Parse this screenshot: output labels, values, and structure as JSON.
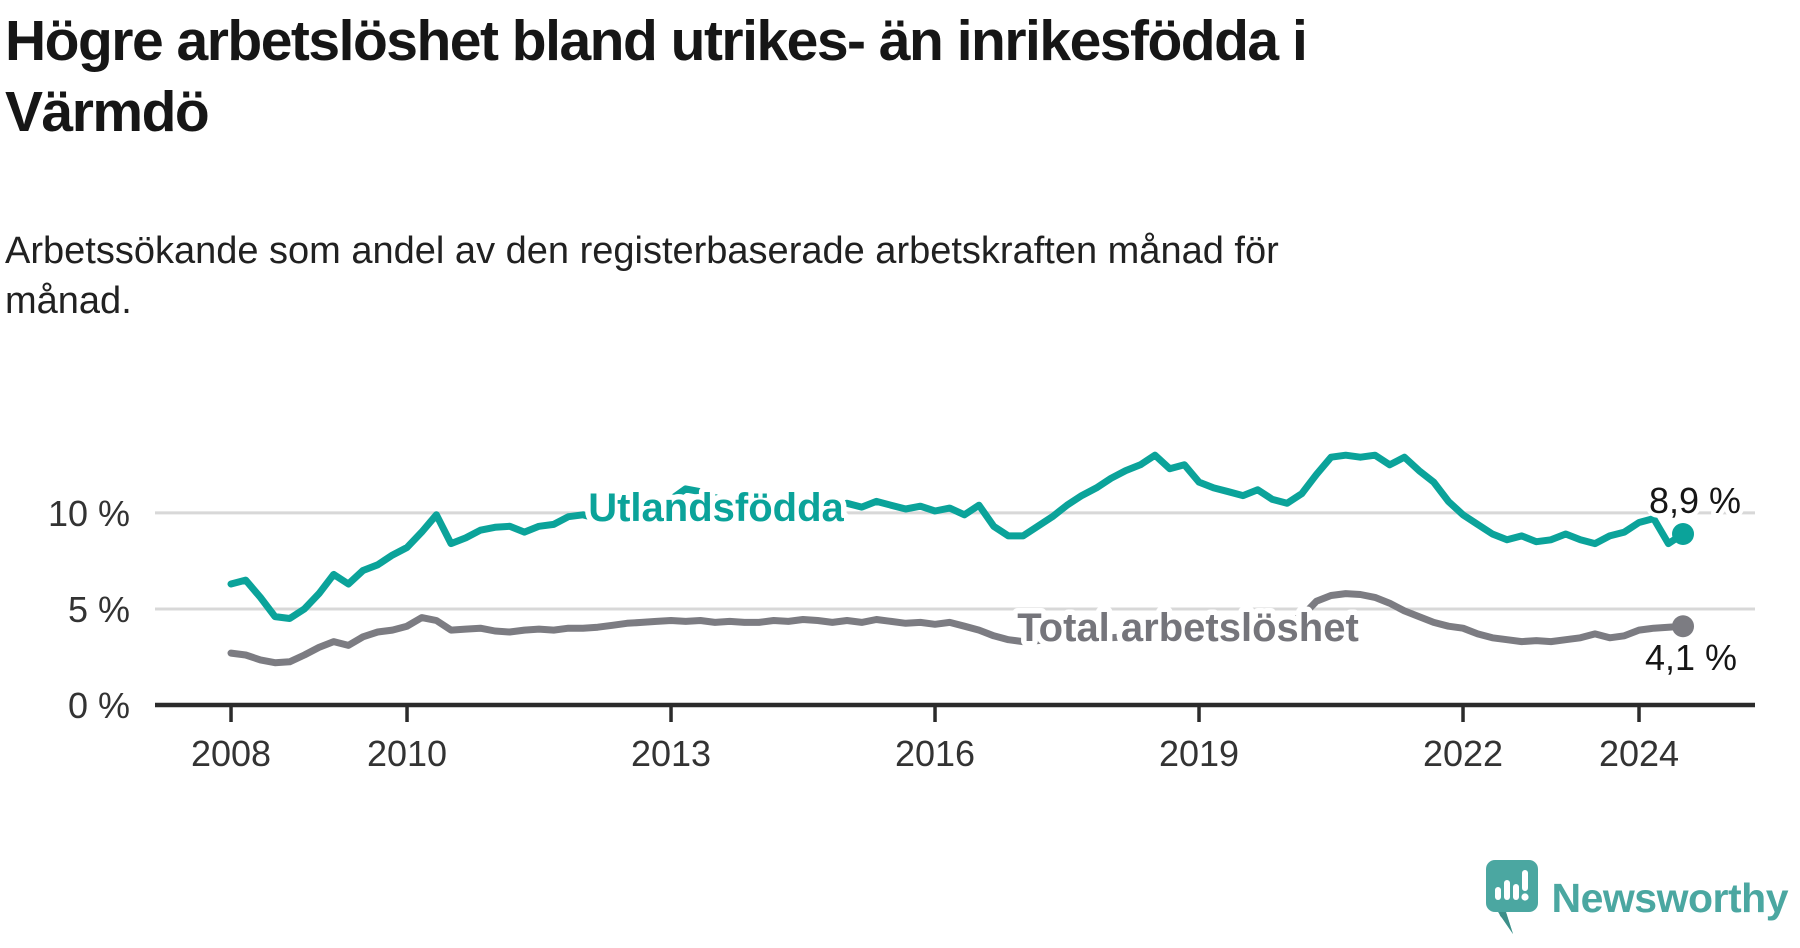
{
  "header": {
    "title_lines": [
      "Högre arbetslöshet bland utrikes- än inrikesfödda i",
      "Värmdö"
    ],
    "subtitle_lines": [
      "Arbetssökande som andel av den registerbaserade arbetskraften månad för",
      "månad."
    ]
  },
  "branding": {
    "name": "Newsworthy",
    "logo_icon": "newsworthy-speech-bubble-bar-chart-icon",
    "color": "#4ba7a1"
  },
  "chart_data": {
    "type": "line",
    "title": "Högre arbetslöshet bland utrikes- än inrikesfödda i Värmdö",
    "subtitle": "Arbetssökande som andel av den registerbaserade arbetskraften månad för månad.",
    "grid": "horizontal",
    "legend_position": "inline-labels",
    "xlim": [
      2007.136,
      2025.318
    ],
    "ylim": [
      0,
      16.5
    ],
    "x_ticks": [
      {
        "v": 2008,
        "label": "2008"
      },
      {
        "v": 2010,
        "label": "2010"
      },
      {
        "v": 2013,
        "label": "2013"
      },
      {
        "v": 2016,
        "label": "2016"
      },
      {
        "v": 2019,
        "label": "2019"
      },
      {
        "v": 2022,
        "label": "2022"
      },
      {
        "v": 2024,
        "label": "2024"
      }
    ],
    "y_ticks": [
      {
        "v": 0,
        "label": "0 %"
      },
      {
        "v": 5,
        "label": "5 %"
      },
      {
        "v": 10,
        "label": "10 %"
      }
    ],
    "colors": {
      "grid": "#d8d8d8",
      "axis": "#2b2b2b",
      "tick_text": "#333333"
    },
    "series": [
      {
        "key": "total",
        "name": "Total arbetslöshet",
        "color": "#7c7c82",
        "label_color": "#75757b",
        "start_year": 2008,
        "start_month": 1,
        "step_months": 2,
        "end_label": "4,1 %",
        "end_value": 4.1,
        "values": [
          2.7,
          2.6,
          2.35,
          2.2,
          2.25,
          2.6,
          3.0,
          3.3,
          3.1,
          3.55,
          3.8,
          3.9,
          4.1,
          4.55,
          4.4,
          3.9,
          3.95,
          4.0,
          3.85,
          3.8,
          3.9,
          3.95,
          3.9,
          4.0,
          4.0,
          4.05,
          4.15,
          4.25,
          4.3,
          4.35,
          4.4,
          4.35,
          4.4,
          4.3,
          4.35,
          4.3,
          4.3,
          4.4,
          4.35,
          4.45,
          4.4,
          4.3,
          4.4,
          4.3,
          4.45,
          4.35,
          4.25,
          4.3,
          4.2,
          4.3,
          4.1,
          3.9,
          3.6,
          3.4,
          3.3,
          3.35,
          3.45,
          3.5,
          3.55,
          3.6,
          3.5,
          3.55,
          3.6,
          3.65,
          3.7,
          3.75,
          3.7,
          3.8,
          3.85,
          3.9,
          4.0,
          4.1,
          4.3,
          4.6,
          5.4,
          5.7,
          5.8,
          5.75,
          5.6,
          5.3,
          4.9,
          4.6,
          4.3,
          4.1,
          4.0,
          3.7,
          3.5,
          3.4,
          3.3,
          3.35,
          3.3,
          3.4,
          3.5,
          3.7,
          3.5,
          3.6,
          3.9,
          4.0,
          4.05,
          4.1
        ]
      },
      {
        "key": "utlandsfodda",
        "name": "Utlandsfödda",
        "color": "#0ba39a",
        "label_color": "#0ba39a",
        "start_year": 2008,
        "start_month": 1,
        "step_months": 2,
        "end_label": "8,9 %",
        "end_value": 8.9,
        "values": [
          6.3,
          6.5,
          5.6,
          4.6,
          4.5,
          5.0,
          5.8,
          6.8,
          6.3,
          7.0,
          7.3,
          7.8,
          8.2,
          9.0,
          9.9,
          8.4,
          8.7,
          9.1,
          9.25,
          9.3,
          9.0,
          9.3,
          9.4,
          9.8,
          9.9,
          9.7,
          10.0,
          9.8,
          10.1,
          10.3,
          10.7,
          11.25,
          11.1,
          10.8,
          10.5,
          10.3,
          10.2,
          10.45,
          10.3,
          10.5,
          10.4,
          10.3,
          10.5,
          10.3,
          10.6,
          10.4,
          10.2,
          10.35,
          10.1,
          10.25,
          9.9,
          10.4,
          9.3,
          8.8,
          8.8,
          9.3,
          9.8,
          10.4,
          10.9,
          11.3,
          11.8,
          12.2,
          12.5,
          13.0,
          12.3,
          12.5,
          11.6,
          11.3,
          11.1,
          10.9,
          11.2,
          10.7,
          10.5,
          11.0,
          12.0,
          12.9,
          13.0,
          12.9,
          13.0,
          12.5,
          12.9,
          12.2,
          11.6,
          10.6,
          9.9,
          9.4,
          8.9,
          8.6,
          8.8,
          8.5,
          8.6,
          8.9,
          8.6,
          8.4,
          8.8,
          9.0,
          9.5,
          9.7,
          8.4,
          8.9
        ]
      }
    ]
  }
}
